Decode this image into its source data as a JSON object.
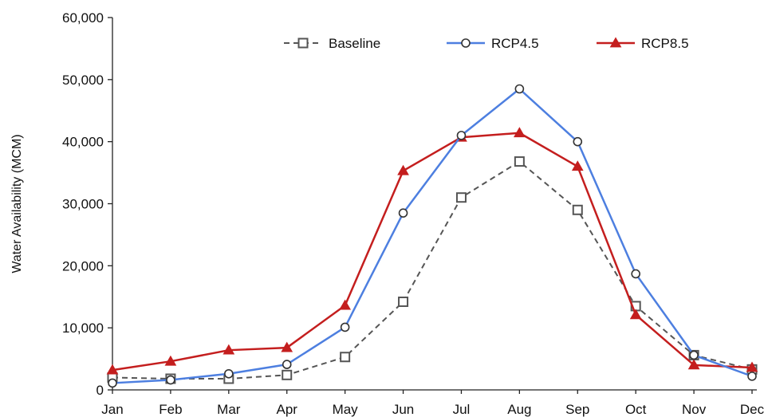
{
  "chart_data": {
    "type": "line",
    "title": "",
    "xlabel": "",
    "ylabel": "Water Availability (MCM)",
    "categories": [
      "Jan",
      "Feb",
      "Mar",
      "Apr",
      "May",
      "Jun",
      "Jul",
      "Aug",
      "Sep",
      "Oct",
      "Nov",
      "Dec"
    ],
    "ylim": [
      0,
      60000
    ],
    "yticks": [
      "0",
      "10,000",
      "20,000",
      "30,000",
      "40,000",
      "50,000",
      "60,000"
    ],
    "ytick_values": [
      0,
      10000,
      20000,
      30000,
      40000,
      50000,
      60000
    ],
    "grid": false,
    "legend_position": "top",
    "series": [
      {
        "name": "Baseline",
        "color": "#555555",
        "marker": "open-square",
        "line_style": "dashed",
        "values": [
          2000,
          1800,
          1800,
          2400,
          5300,
          14200,
          31000,
          36800,
          29000,
          13500,
          5600,
          3300
        ]
      },
      {
        "name": "RCP4.5",
        "color": "#4d7fe0",
        "marker": "open-circle",
        "line_style": "solid",
        "values": [
          1100,
          1600,
          2600,
          4100,
          10100,
          28500,
          41000,
          48500,
          40000,
          18700,
          5600,
          2200
        ]
      },
      {
        "name": "RCP8.5",
        "color": "#c41e1e",
        "marker": "filled-triangle",
        "line_style": "solid",
        "values": [
          3200,
          4600,
          6400,
          6800,
          13600,
          35300,
          40700,
          41400,
          36000,
          12100,
          4000,
          3600
        ]
      }
    ]
  }
}
